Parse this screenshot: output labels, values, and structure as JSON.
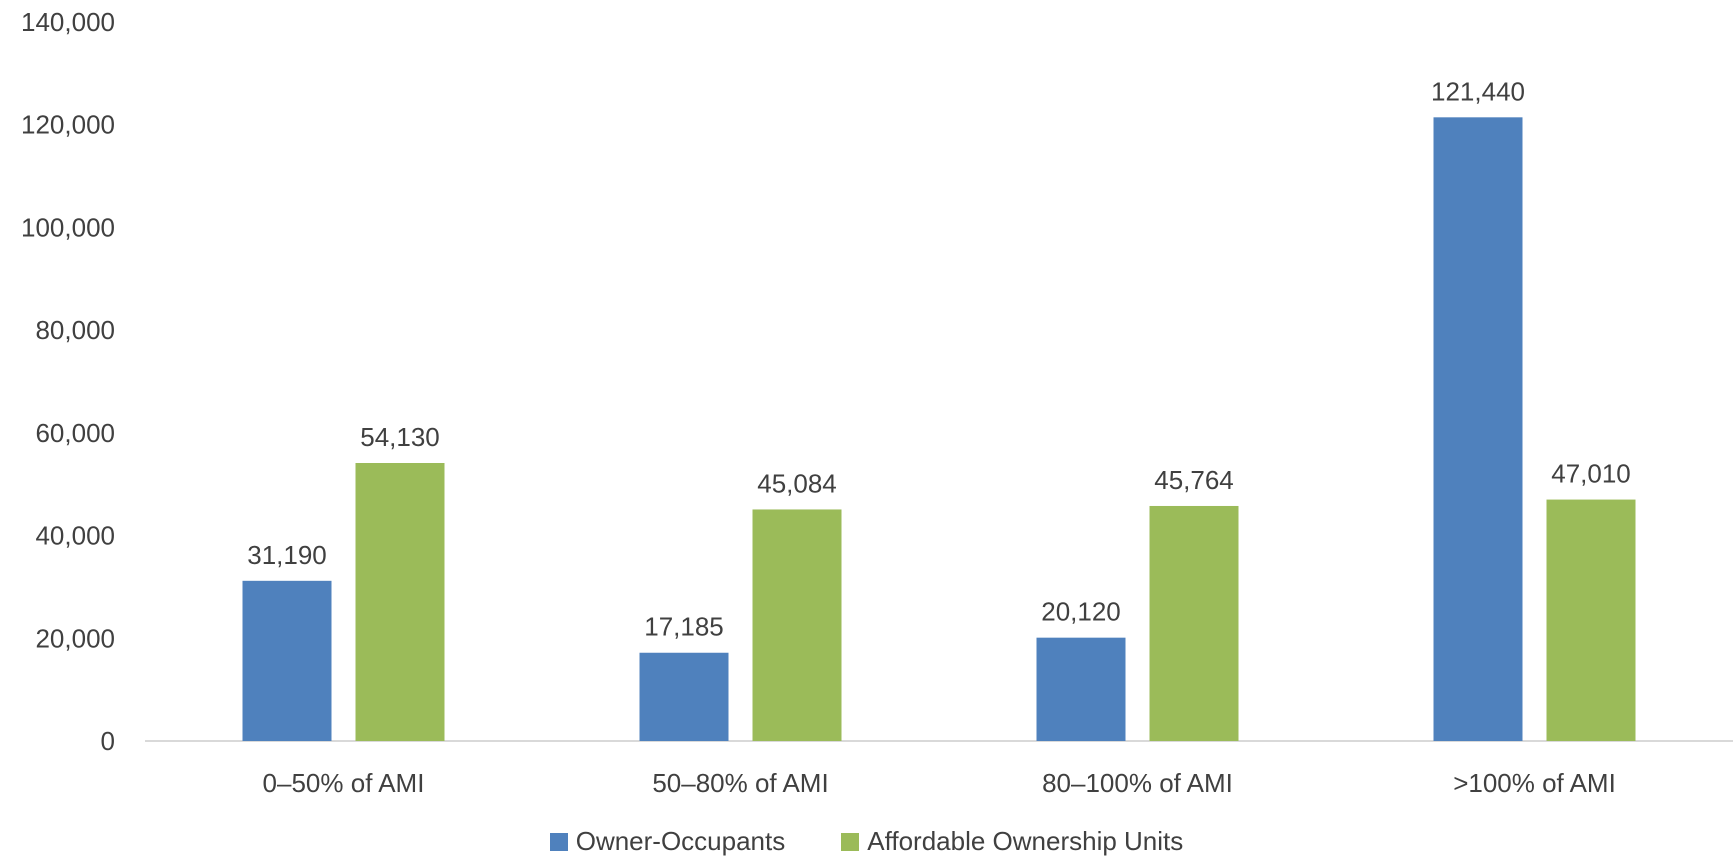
{
  "chart_data": {
    "type": "bar",
    "categories": [
      "0–50% of AMI",
      "50–80% of AMI",
      "80–100% of AMI",
      ">100% of AMI"
    ],
    "series": [
      {
        "name": "Owner-Occupants",
        "values": [
          31190,
          17185,
          20120,
          121440
        ],
        "labels": [
          "31,190",
          "17,185",
          "20,120",
          "121,440"
        ],
        "color": "#4f81bd"
      },
      {
        "name": "Affordable Ownership Units",
        "values": [
          54130,
          45084,
          45764,
          47010
        ],
        "labels": [
          "54,130",
          "45,084",
          "45,764",
          "47,010"
        ],
        "color": "#9bbb59"
      }
    ],
    "ylim": [
      0,
      140000
    ],
    "yticks": [
      0,
      20000,
      40000,
      60000,
      80000,
      100000,
      120000,
      140000
    ],
    "ytick_labels": [
      "0",
      "20,000",
      "40,000",
      "60,000",
      "80,000",
      "100,000",
      "120,000",
      "140,000"
    ],
    "grid": false,
    "legend_position": "bottom",
    "axis_color": "#d9d9d9",
    "text_color": "#404040"
  }
}
